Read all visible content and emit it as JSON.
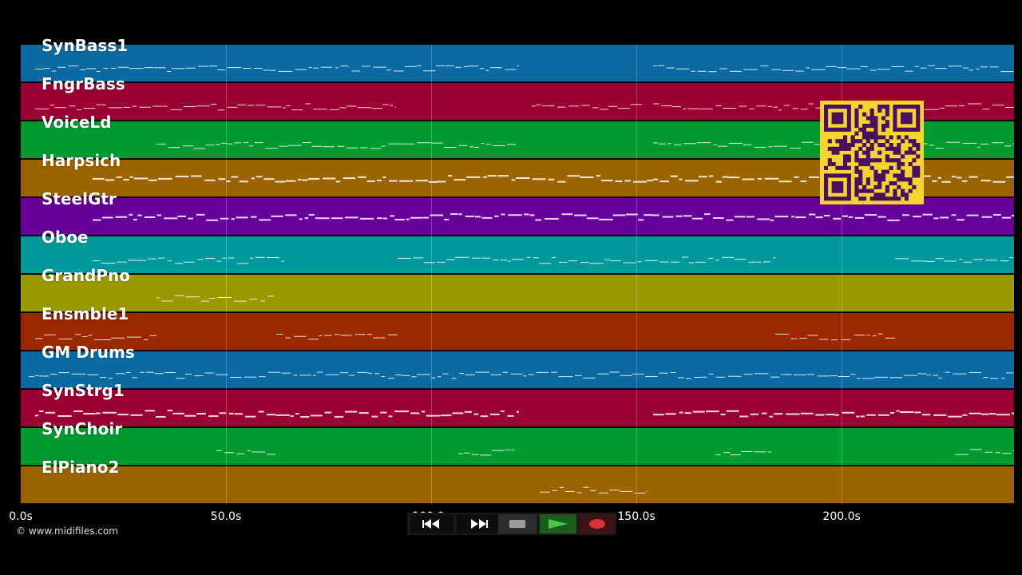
{
  "tracks": [
    {
      "name": "SynBass1",
      "color": "#0a6aa1"
    },
    {
      "name": "FngrBass",
      "color": "#9b0032"
    },
    {
      "name": "VoiceLd",
      "color": "#009a2e"
    },
    {
      "name": "Harpsich",
      "color": "#9b6400"
    },
    {
      "name": "SteelGtr",
      "color": "#67009b"
    },
    {
      "name": "Oboe",
      "color": "#00999b"
    },
    {
      "name": "GrandPno",
      "color": "#9b9900"
    },
    {
      "name": "Ensmble1",
      "color": "#9b2800"
    },
    {
      "name": "GM Drums",
      "color": "#0a6aa1"
    },
    {
      "name": "SynStrg1",
      "color": "#9b0032"
    },
    {
      "name": "SynChoir",
      "color": "#009a2e"
    },
    {
      "name": "ElPiano2",
      "color": "#9b6400"
    }
  ],
  "timeline": {
    "max_seconds": 242,
    "ticks": [
      {
        "seconds": 0,
        "label": "0.0s"
      },
      {
        "seconds": 50,
        "label": "50.0s"
      },
      {
        "seconds": 100,
        "label": "100.0s"
      },
      {
        "seconds": 150,
        "label": "150.0s"
      },
      {
        "seconds": 200,
        "label": "200.0s"
      }
    ]
  },
  "copyright": "© www.midifiles.com",
  "controls": {
    "rewind": "rewind-icon",
    "fast_forward": "fast-forward-icon",
    "stop": "stop-icon",
    "play": "play-icon",
    "record": "record-icon"
  },
  "qr_code": {
    "color": "#4a1060",
    "background": "#f5d430"
  }
}
